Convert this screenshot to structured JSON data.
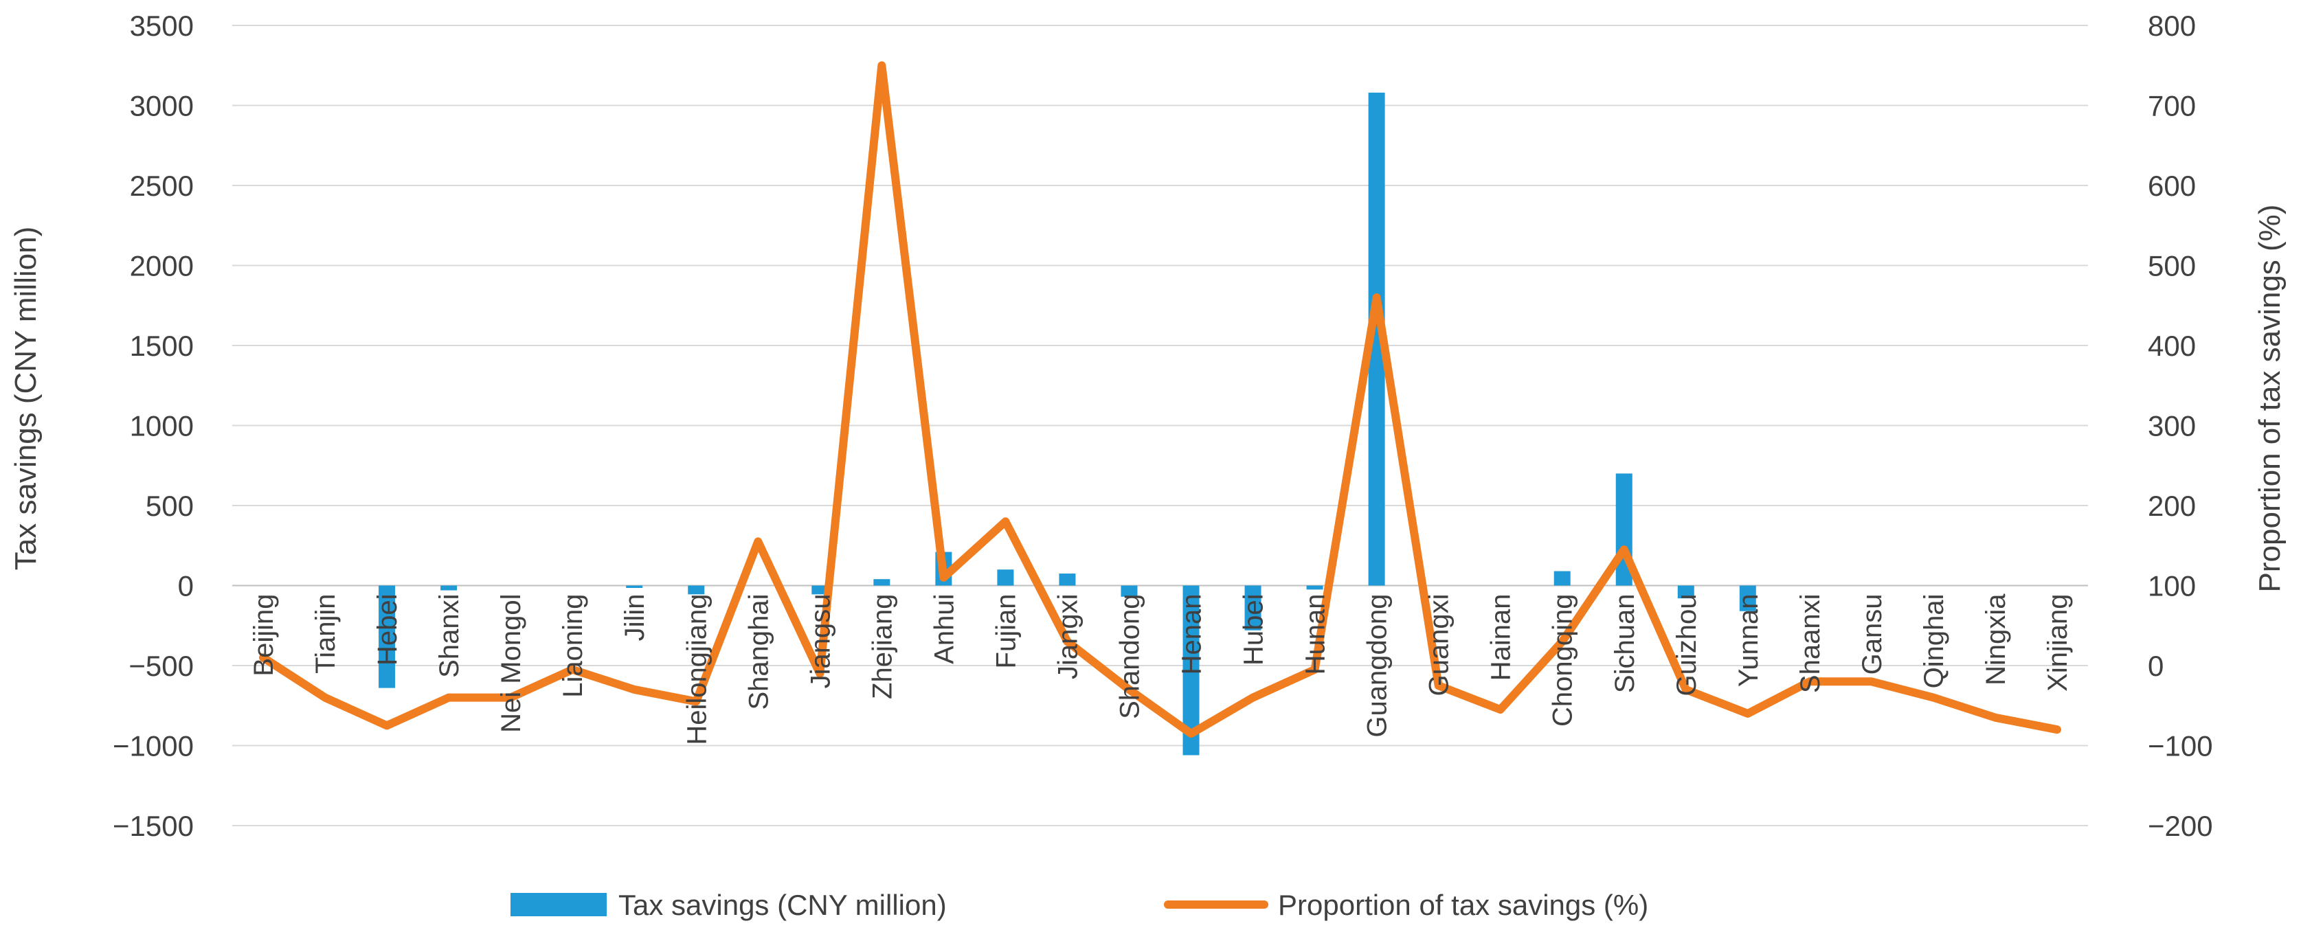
{
  "chart_data": {
    "type": "bar+line",
    "title": "",
    "xlabel": "",
    "ylabel_left": "Tax savings (CNY million)",
    "ylabel_right": "Proportion of tax savings (%)",
    "ylim_left": [
      -1500,
      3500
    ],
    "yticks_left": [
      -1500,
      -1000,
      -500,
      0,
      500,
      1000,
      1500,
      2000,
      2500,
      3000,
      3500
    ],
    "ytick_labels_left": [
      "−1500",
      "−1000",
      "−500",
      "0",
      "500",
      "1000",
      "1500",
      "2000",
      "2500",
      "3000",
      "3500"
    ],
    "ylim_right": [
      -200,
      800
    ],
    "yticks_right": [
      -200,
      -100,
      0,
      100,
      200,
      300,
      400,
      500,
      600,
      700,
      800
    ],
    "ytick_labels_right": [
      "−200",
      "−100",
      "0",
      "100",
      "200",
      "300",
      "400",
      "500",
      "600",
      "700",
      "800"
    ],
    "grid": true,
    "legend_position": "bottom",
    "categories": [
      "Beijing",
      "Tianjin",
      "Hebei",
      "Shanxi",
      "Nei Mongol",
      "Liaoning",
      "Jilin",
      "Heilongjiang",
      "Shanghai",
      "Jiangsu",
      "Zhejiang",
      "Anhui",
      "Fujian",
      "Jiangxi",
      "Shandong",
      "Henan",
      "Hubei",
      "Hunan",
      "Guangdong",
      "Guangxi",
      "Hainan",
      "Chongqing",
      "Sichuan",
      "Guizhou",
      "Yunnan",
      "Shaanxi",
      "Gansu",
      "Qinghai",
      "Ningxia",
      "Xinjiang"
    ],
    "series": [
      {
        "name": "Tax savings (CNY million)",
        "type": "bar",
        "axis": "left",
        "color": "#1f9ad6",
        "values": [
          0,
          0,
          -640,
          -30,
          0,
          0,
          -15,
          -55,
          0,
          -55,
          40,
          210,
          100,
          75,
          -70,
          -1060,
          -280,
          -25,
          3080,
          0,
          0,
          90,
          700,
          -80,
          -160,
          0,
          0,
          0,
          0,
          0
        ]
      },
      {
        "name": "Proportion of tax savings (%)",
        "type": "line",
        "axis": "right",
        "color": "#f07d20",
        "values": [
          10,
          -40,
          -75,
          -40,
          -40,
          -5,
          -30,
          -45,
          155,
          -10,
          750,
          110,
          180,
          30,
          -30,
          -85,
          -40,
          -5,
          460,
          -25,
          -55,
          30,
          145,
          -30,
          -60,
          -20,
          -20,
          -40,
          -65,
          -80
        ]
      }
    ]
  }
}
